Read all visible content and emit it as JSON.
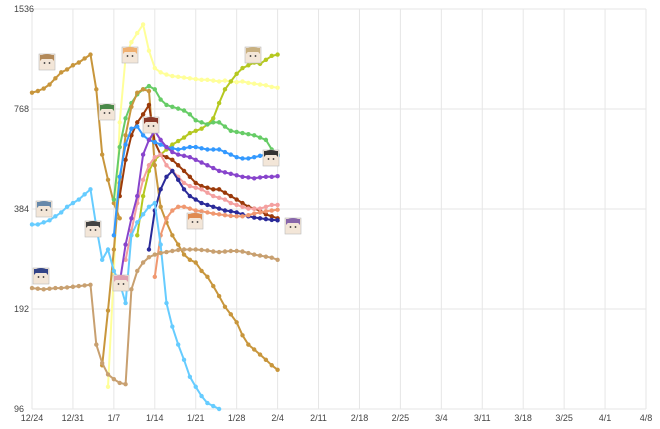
{
  "chart_data": {
    "type": "line",
    "y_scale": "log2",
    "y_ticks": [
      "1536",
      "768",
      "384",
      "192",
      "96"
    ],
    "y_tick_values": [
      1536,
      768,
      384,
      192,
      96
    ],
    "ylim": [
      96,
      1536
    ],
    "x_ticks": [
      "12/24",
      "12/31",
      "1/7",
      "1/14",
      "1/21",
      "1/28",
      "2/4",
      "2/11",
      "2/18",
      "2/25",
      "3/4",
      "3/11",
      "3/18",
      "3/25",
      "4/1",
      "4/8"
    ],
    "grid": true,
    "series": [
      {
        "color": "#c8963c",
        "x": [
          0,
          1,
          2,
          3,
          4,
          5,
          6,
          7,
          8,
          9,
          10,
          11,
          12,
          13,
          14,
          15
        ],
        "y": [
          860,
          870,
          885,
          910,
          950,
          990,
          1010,
          1040,
          1060,
          1090,
          1120,
          880,
          560,
          470,
          400,
          360
        ]
      },
      {
        "color": "#ffff99",
        "x": [
          13,
          14,
          15,
          16,
          17,
          18,
          19,
          20,
          21,
          22,
          23,
          24,
          25,
          26,
          27,
          28,
          29,
          30,
          31,
          32,
          33,
          34,
          35,
          36,
          37,
          38,
          39,
          40,
          41,
          42
        ],
        "y": [
          112,
          250,
          700,
          1100,
          1220,
          1300,
          1380,
          1150,
          1020,
          990,
          975,
          965,
          960,
          955,
          950,
          945,
          940,
          940,
          935,
          930,
          935,
          930,
          925,
          930,
          920,
          915,
          910,
          905,
          895,
          890
        ]
      },
      {
        "color": "#b5c820",
        "x": [
          18,
          19,
          20,
          21,
          22,
          23,
          24,
          25,
          26,
          27,
          28,
          29,
          30,
          31,
          32,
          33,
          34,
          35,
          36,
          37,
          38,
          39,
          40,
          41,
          42
        ],
        "y": [
          320,
          420,
          500,
          540,
          560,
          580,
          600,
          615,
          630,
          650,
          660,
          670,
          690,
          720,
          800,
          880,
          930,
          980,
          1020,
          1040,
          1060,
          1050,
          1080,
          1110,
          1120
        ]
      },
      {
        "color": "#66cc66",
        "x": [
          14,
          15,
          16,
          17,
          18,
          19,
          20,
          21,
          22,
          23,
          24,
          25,
          26,
          27,
          28,
          29,
          30,
          31,
          32,
          33,
          34,
          35,
          36,
          37,
          38,
          39,
          40,
          41,
          42
        ],
        "y": [
          410,
          590,
          720,
          800,
          850,
          880,
          900,
          880,
          820,
          790,
          780,
          770,
          760,
          740,
          710,
          700,
          690,
          700,
          700,
          680,
          660,
          655,
          650,
          645,
          640,
          630,
          620,
          580,
          560
        ]
      },
      {
        "color": "#c8963c",
        "x": [
          12,
          13,
          14,
          15,
          16,
          17,
          18,
          19,
          20,
          21,
          22,
          23,
          24,
          25,
          26,
          27,
          28,
          29,
          30,
          31,
          32,
          33,
          34,
          35,
          36,
          37,
          38,
          39,
          40,
          41,
          42
        ],
        "y": [
          130,
          190,
          290,
          460,
          640,
          780,
          860,
          880,
          870,
          520,
          390,
          350,
          320,
          300,
          280,
          270,
          265,
          250,
          240,
          225,
          210,
          195,
          185,
          175,
          160,
          150,
          145,
          140,
          135,
          130,
          126
        ]
      },
      {
        "color": "#9b3a0a",
        "x": [
          15,
          16,
          17,
          18,
          19,
          20,
          21,
          22,
          23,
          24,
          25,
          26,
          27,
          28,
          29,
          30,
          31,
          32,
          33,
          34,
          35,
          36,
          37,
          38,
          39,
          40,
          41,
          42
        ],
        "y": [
          420,
          540,
          640,
          700,
          740,
          790,
          610,
          560,
          550,
          540,
          520,
          500,
          480,
          460,
          450,
          445,
          440,
          440,
          430,
          420,
          410,
          400,
          390,
          385,
          380,
          370,
          365,
          360
        ]
      },
      {
        "color": "#3399ff",
        "x": [
          14,
          15,
          16,
          17,
          18,
          19,
          20,
          21,
          22,
          23,
          24,
          25,
          26,
          27,
          28,
          29,
          30,
          31,
          32,
          33,
          34,
          35,
          36,
          37,
          38,
          39,
          40,
          41,
          42
        ],
        "y": [
          320,
          480,
          600,
          670,
          680,
          640,
          620,
          610,
          600,
          590,
          585,
          580,
          585,
          590,
          590,
          585,
          580,
          580,
          580,
          570,
          560,
          550,
          545,
          545,
          550,
          555,
          560,
          560,
          555
        ]
      },
      {
        "color": "#f4a0a0",
        "x": [
          16,
          17,
          18,
          19,
          20,
          21,
          22,
          23,
          24,
          25,
          26,
          27,
          28,
          29,
          30,
          31,
          32,
          33,
          34,
          35,
          36,
          37,
          38,
          39,
          40,
          41,
          42
        ],
        "y": [
          270,
          330,
          400,
          470,
          520,
          550,
          560,
          520,
          500,
          480,
          460,
          450,
          445,
          440,
          430,
          420,
          415,
          410,
          400,
          395,
          390,
          385,
          385,
          385,
          390,
          395,
          395
        ]
      },
      {
        "color": "#8844cc",
        "x": [
          15,
          16,
          17,
          18,
          19,
          20,
          21,
          22,
          23,
          24,
          25,
          26,
          27,
          28,
          29,
          30,
          31,
          32,
          33,
          34,
          35,
          36,
          37,
          38,
          39,
          40,
          41,
          42
        ],
        "y": [
          230,
          300,
          360,
          420,
          560,
          620,
          660,
          620,
          590,
          570,
          560,
          555,
          550,
          540,
          530,
          520,
          510,
          500,
          495,
          490,
          485,
          480,
          478,
          475,
          478,
          480,
          480,
          482
        ]
      },
      {
        "color": "#2a2a99",
        "x": [
          20,
          21,
          22,
          23,
          24,
          25,
          26,
          27,
          28,
          29,
          30,
          31,
          32,
          33,
          34,
          35,
          36,
          37,
          38,
          39,
          40,
          41,
          42
        ],
        "y": [
          290,
          380,
          440,
          480,
          500,
          470,
          440,
          420,
          410,
          400,
          395,
          390,
          385,
          380,
          378,
          375,
          370,
          365,
          362,
          360,
          358,
          356,
          355
        ]
      },
      {
        "color": "#f09870",
        "x": [
          21,
          22,
          23,
          24,
          25,
          26,
          27,
          28,
          29,
          30,
          31,
          32,
          33,
          34,
          35,
          36,
          37,
          38,
          39,
          40,
          41,
          42
        ],
        "y": [
          240,
          320,
          360,
          380,
          390,
          390,
          385,
          380,
          378,
          375,
          372,
          370,
          368,
          366,
          365,
          365,
          368,
          372,
          375,
          378,
          380,
          382
        ]
      },
      {
        "color": "#66ccff",
        "x": [
          0,
          1,
          2,
          3,
          4,
          5,
          6,
          7,
          8,
          9,
          10,
          11,
          12,
          13,
          14,
          15,
          16,
          17,
          18,
          19,
          20,
          21,
          22,
          23,
          24,
          25,
          26,
          27,
          28,
          29,
          30,
          31,
          32
        ],
        "y": [
          345,
          345,
          350,
          355,
          365,
          375,
          390,
          400,
          410,
          425,
          440,
          340,
          270,
          290,
          250,
          230,
          200,
          320,
          350,
          370,
          390,
          400,
          300,
          200,
          170,
          150,
          135,
          120,
          112,
          105,
          100,
          98,
          96
        ]
      },
      {
        "color": "#c8a070",
        "x": [
          0,
          1,
          2,
          3,
          4,
          5,
          6,
          7,
          8,
          9,
          10,
          11,
          12,
          13,
          14,
          15,
          16,
          17,
          18,
          19,
          20,
          21,
          22,
          23,
          24,
          25,
          26,
          27,
          28,
          29,
          30,
          31,
          32,
          33,
          34,
          35,
          36,
          37,
          38,
          39,
          40,
          41,
          42
        ],
        "y": [
          222,
          221,
          220,
          221,
          222,
          222,
          223,
          224,
          225,
          226,
          227,
          150,
          132,
          122,
          118,
          115,
          114,
          220,
          250,
          265,
          275,
          280,
          283,
          285,
          287,
          289,
          290,
          290,
          290,
          289,
          288,
          286,
          285,
          286,
          287,
          287,
          286,
          283,
          280,
          278,
          276,
          274,
          270
        ]
      }
    ],
    "avatars": [
      {
        "name": "avatar-brown-hair-girl",
        "color": "#b38a5a"
      },
      {
        "name": "avatar-orange-hair-girl",
        "color": "#f0b070"
      },
      {
        "name": "avatar-green-hair-girl",
        "color": "#4a8a4a"
      },
      {
        "name": "avatar-red-hair-girl",
        "color": "#8a3a2a"
      },
      {
        "name": "avatar-blonde-girl",
        "color": "#c8b080"
      },
      {
        "name": "avatar-blue-hair-boy",
        "color": "#6688aa"
      },
      {
        "name": "avatar-dark-hair-boy",
        "color": "#444444"
      },
      {
        "name": "avatar-pink-hair-girl",
        "color": "#e0a0b0"
      },
      {
        "name": "avatar-orange-hair-boy",
        "color": "#e08a50"
      },
      {
        "name": "avatar-purple-hair-girl",
        "color": "#8866aa"
      },
      {
        "name": "avatar-navy-hair-girl",
        "color": "#334488"
      },
      {
        "name": "avatar-black-hair-boy",
        "color": "#333333"
      }
    ]
  }
}
